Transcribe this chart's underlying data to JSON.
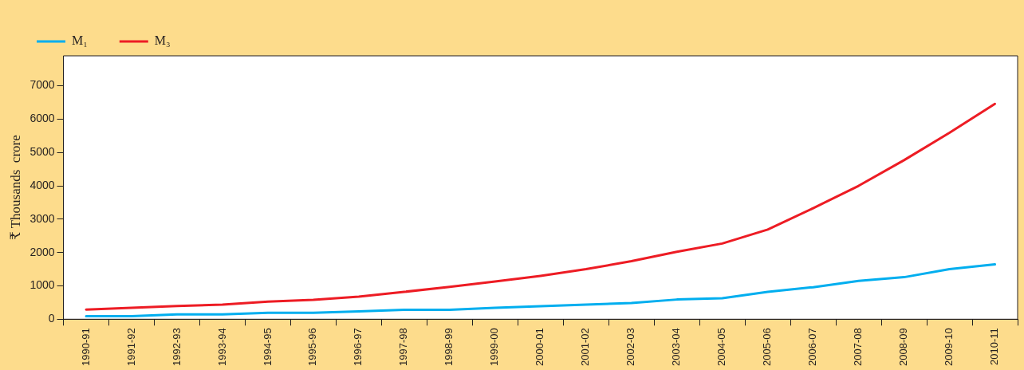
{
  "chart_data": {
    "type": "line",
    "ylabel": "₹ Thousands  crore",
    "categories": [
      "1990-91",
      "1991-92",
      "1992-93",
      "1993-94",
      "1994-95",
      "1995-96",
      "1996-97",
      "1997-98",
      "1998-99",
      "1999-00",
      "2000-01",
      "2001-02",
      "2002-03",
      "2003-04",
      "2004-05",
      "2005-06",
      "2006-07",
      "2007-08",
      "2008-09",
      "2009-10",
      "2010-11"
    ],
    "series": [
      {
        "name": "M₁",
        "color": "#00aeef",
        "values": [
          90,
          90,
          145,
          145,
          195,
          195,
          235,
          280,
          280,
          340,
          390,
          435,
          485,
          590,
          630,
          820,
          960,
          1150,
          1260,
          1500,
          1645
        ]
      },
      {
        "name": "M₃",
        "color": "#ed1c24",
        "values": [
          290,
          340,
          395,
          435,
          530,
          580,
          675,
          820,
          970,
          1130,
          1300,
          1500,
          1740,
          2020,
          2270,
          2690,
          3330,
          4000,
          4770,
          5590,
          6460
        ]
      }
    ],
    "ylim": [
      0,
      7900
    ],
    "yticks": [
      0,
      1000,
      2000,
      3000,
      4000,
      5000,
      6000,
      7000
    ],
    "legend": "top left"
  }
}
